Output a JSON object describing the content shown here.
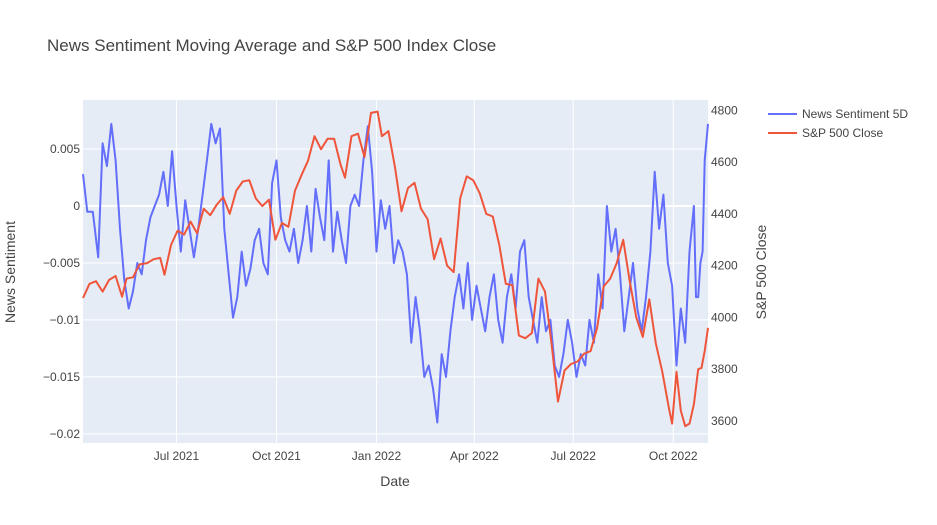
{
  "chart_data": {
    "type": "line",
    "title": "News Sentiment Moving Average and S&P 500 Index Close",
    "xlabel": "Date",
    "ylabel": "News Sentiment",
    "y2label": "S&P 500 Close",
    "xrange": [
      "2021-04-06",
      "2022-11-02"
    ],
    "ylim": [
      -0.0208,
      0.0093
    ],
    "y2lim": [
      3515,
      4840
    ],
    "x_ticks": [
      {
        "date": "2021-07-01",
        "label": "Jul 2021"
      },
      {
        "date": "2021-10-01",
        "label": "Oct 2021"
      },
      {
        "date": "2022-01-01",
        "label": "Jan 2022"
      },
      {
        "date": "2022-04-01",
        "label": "Apr 2022"
      },
      {
        "date": "2022-07-01",
        "label": "Jul 2022"
      },
      {
        "date": "2022-10-01",
        "label": "Oct 2022"
      }
    ],
    "y_ticks": [
      {
        "value": 0.005,
        "label": "0.005"
      },
      {
        "value": 0,
        "label": "0"
      },
      {
        "value": -0.005,
        "label": "−0.005"
      },
      {
        "value": -0.01,
        "label": "−0.01"
      },
      {
        "value": -0.015,
        "label": "−0.015"
      },
      {
        "value": -0.02,
        "label": "−0.02"
      }
    ],
    "y2_ticks": [
      {
        "value": 4800,
        "label": "4800"
      },
      {
        "value": 4600,
        "label": "4600"
      },
      {
        "value": 4400,
        "label": "4400"
      },
      {
        "value": 4200,
        "label": "4200"
      },
      {
        "value": 4000,
        "label": "4000"
      },
      {
        "value": 3800,
        "label": "3800"
      },
      {
        "value": 3600,
        "label": "3600"
      }
    ],
    "legend_position": "top-right outside",
    "grid": true,
    "series": [
      {
        "name": "News Sentiment 5D",
        "axis": "left",
        "color": "#636efa",
        "points": [
          [
            "2021-04-06",
            0.0028
          ],
          [
            "2021-04-10",
            -0.0005
          ],
          [
            "2021-04-15",
            -0.0005
          ],
          [
            "2021-04-20",
            -0.0045
          ],
          [
            "2021-04-24",
            0.0055
          ],
          [
            "2021-04-28",
            0.0035
          ],
          [
            "2021-05-02",
            0.0072
          ],
          [
            "2021-05-06",
            0.004
          ],
          [
            "2021-05-10",
            -0.002
          ],
          [
            "2021-05-14",
            -0.0065
          ],
          [
            "2021-05-18",
            -0.009
          ],
          [
            "2021-05-22",
            -0.0075
          ],
          [
            "2021-05-26",
            -0.005
          ],
          [
            "2021-05-30",
            -0.006
          ],
          [
            "2021-06-03",
            -0.003
          ],
          [
            "2021-06-07",
            -0.001
          ],
          [
            "2021-06-11",
            0.0
          ],
          [
            "2021-06-15",
            0.001
          ],
          [
            "2021-06-19",
            0.003
          ],
          [
            "2021-06-23",
            0.0
          ],
          [
            "2021-06-27",
            0.0048
          ],
          [
            "2021-07-01",
            0.0
          ],
          [
            "2021-07-05",
            -0.004
          ],
          [
            "2021-07-09",
            0.0005
          ],
          [
            "2021-07-13",
            -0.002
          ],
          [
            "2021-07-17",
            -0.0045
          ],
          [
            "2021-07-21",
            -0.002
          ],
          [
            "2021-07-25",
            0.001
          ],
          [
            "2021-07-29",
            0.004
          ],
          [
            "2021-08-02",
            0.0072
          ],
          [
            "2021-08-06",
            0.0055
          ],
          [
            "2021-08-10",
            0.0068
          ],
          [
            "2021-08-14",
            -0.002
          ],
          [
            "2021-08-18",
            -0.006
          ],
          [
            "2021-08-22",
            -0.0098
          ],
          [
            "2021-08-26",
            -0.008
          ],
          [
            "2021-08-30",
            -0.004
          ],
          [
            "2021-09-03",
            -0.007
          ],
          [
            "2021-09-07",
            -0.0055
          ],
          [
            "2021-09-11",
            -0.003
          ],
          [
            "2021-09-15",
            -0.002
          ],
          [
            "2021-09-19",
            -0.005
          ],
          [
            "2021-09-23",
            -0.006
          ],
          [
            "2021-09-27",
            0.002
          ],
          [
            "2021-10-01",
            0.004
          ],
          [
            "2021-10-05",
            -0.001
          ],
          [
            "2021-10-09",
            -0.003
          ],
          [
            "2021-10-13",
            -0.004
          ],
          [
            "2021-10-17",
            -0.002
          ],
          [
            "2021-10-21",
            -0.005
          ],
          [
            "2021-10-25",
            -0.003
          ],
          [
            "2021-10-29",
            0.0
          ],
          [
            "2021-11-02",
            -0.004
          ],
          [
            "2021-11-06",
            0.0015
          ],
          [
            "2021-11-10",
            -0.001
          ],
          [
            "2021-11-14",
            -0.003
          ],
          [
            "2021-11-18",
            0.004
          ],
          [
            "2021-11-22",
            -0.004
          ],
          [
            "2021-11-26",
            -0.0005
          ],
          [
            "2021-11-30",
            -0.003
          ],
          [
            "2021-12-04",
            -0.005
          ],
          [
            "2021-12-08",
            0.0
          ],
          [
            "2021-12-12",
            0.001
          ],
          [
            "2021-12-16",
            0.0
          ],
          [
            "2021-12-20",
            0.004
          ],
          [
            "2021-12-24",
            0.007
          ],
          [
            "2021-12-28",
            0.003
          ],
          [
            "2022-01-01",
            -0.004
          ],
          [
            "2022-01-05",
            0.0005
          ],
          [
            "2022-01-09",
            -0.002
          ],
          [
            "2022-01-13",
            0.0
          ],
          [
            "2022-01-17",
            -0.005
          ],
          [
            "2022-01-21",
            -0.003
          ],
          [
            "2022-01-25",
            -0.004
          ],
          [
            "2022-01-29",
            -0.006
          ],
          [
            "2022-02-02",
            -0.012
          ],
          [
            "2022-02-06",
            -0.008
          ],
          [
            "2022-02-10",
            -0.011
          ],
          [
            "2022-02-14",
            -0.015
          ],
          [
            "2022-02-18",
            -0.014
          ],
          [
            "2022-02-22",
            -0.016
          ],
          [
            "2022-02-26",
            -0.019
          ],
          [
            "2022-03-02",
            -0.013
          ],
          [
            "2022-03-06",
            -0.015
          ],
          [
            "2022-03-10",
            -0.011
          ],
          [
            "2022-03-14",
            -0.008
          ],
          [
            "2022-03-18",
            -0.006
          ],
          [
            "2022-03-22",
            -0.009
          ],
          [
            "2022-03-26",
            -0.005
          ],
          [
            "2022-03-30",
            -0.01
          ],
          [
            "2022-04-03",
            -0.007
          ],
          [
            "2022-04-07",
            -0.009
          ],
          [
            "2022-04-11",
            -0.011
          ],
          [
            "2022-04-15",
            -0.008
          ],
          [
            "2022-04-19",
            -0.006
          ],
          [
            "2022-04-23",
            -0.01
          ],
          [
            "2022-04-27",
            -0.012
          ],
          [
            "2022-05-01",
            -0.008
          ],
          [
            "2022-05-05",
            -0.006
          ],
          [
            "2022-05-09",
            -0.009
          ],
          [
            "2022-05-13",
            -0.004
          ],
          [
            "2022-05-17",
            -0.003
          ],
          [
            "2022-05-21",
            -0.008
          ],
          [
            "2022-05-25",
            -0.01
          ],
          [
            "2022-05-29",
            -0.012
          ],
          [
            "2022-06-02",
            -0.008
          ],
          [
            "2022-06-06",
            -0.011
          ],
          [
            "2022-06-10",
            -0.01
          ],
          [
            "2022-06-14",
            -0.014
          ],
          [
            "2022-06-18",
            -0.015
          ],
          [
            "2022-06-22",
            -0.013
          ],
          [
            "2022-06-26",
            -0.01
          ],
          [
            "2022-06-30",
            -0.012
          ],
          [
            "2022-07-04",
            -0.015
          ],
          [
            "2022-07-08",
            -0.013
          ],
          [
            "2022-07-12",
            -0.014
          ],
          [
            "2022-07-16",
            -0.01
          ],
          [
            "2022-07-20",
            -0.012
          ],
          [
            "2022-07-24",
            -0.006
          ],
          [
            "2022-07-28",
            -0.009
          ],
          [
            "2022-08-01",
            0.0
          ],
          [
            "2022-08-05",
            -0.004
          ],
          [
            "2022-08-09",
            -0.002
          ],
          [
            "2022-08-13",
            -0.006
          ],
          [
            "2022-08-17",
            -0.011
          ],
          [
            "2022-08-21",
            -0.008
          ],
          [
            "2022-08-25",
            -0.005
          ],
          [
            "2022-08-29",
            -0.009
          ],
          [
            "2022-09-02",
            -0.011
          ],
          [
            "2022-09-06",
            -0.008
          ],
          [
            "2022-09-10",
            -0.004
          ],
          [
            "2022-09-14",
            0.003
          ],
          [
            "2022-09-18",
            -0.002
          ],
          [
            "2022-09-22",
            0.001
          ],
          [
            "2022-09-26",
            -0.005
          ],
          [
            "2022-09-30",
            -0.007
          ],
          [
            "2022-10-04",
            -0.014
          ],
          [
            "2022-10-08",
            -0.009
          ],
          [
            "2022-10-12",
            -0.012
          ],
          [
            "2022-10-16",
            -0.004
          ],
          [
            "2022-10-20",
            0.0
          ],
          [
            "2022-10-22",
            -0.008
          ],
          [
            "2022-10-24",
            -0.008
          ],
          [
            "2022-10-26",
            -0.005
          ],
          [
            "2022-10-28",
            -0.004
          ],
          [
            "2022-10-30",
            0.004
          ],
          [
            "2022-11-02",
            0.0072
          ]
        ]
      },
      {
        "name": "S&P 500 Close",
        "axis": "right",
        "color": "#ef553b",
        "points": [
          [
            "2021-04-06",
            4075
          ],
          [
            "2021-04-12",
            4130
          ],
          [
            "2021-04-18",
            4140
          ],
          [
            "2021-04-24",
            4100
          ],
          [
            "2021-04-30",
            4145
          ],
          [
            "2021-05-06",
            4160
          ],
          [
            "2021-05-12",
            4080
          ],
          [
            "2021-05-16",
            4150
          ],
          [
            "2021-05-22",
            4155
          ],
          [
            "2021-05-28",
            4205
          ],
          [
            "2021-06-04",
            4210
          ],
          [
            "2021-06-10",
            4225
          ],
          [
            "2021-06-16",
            4230
          ],
          [
            "2021-06-20",
            4165
          ],
          [
            "2021-06-26",
            4280
          ],
          [
            "2021-07-02",
            4335
          ],
          [
            "2021-07-08",
            4320
          ],
          [
            "2021-07-14",
            4370
          ],
          [
            "2021-07-20",
            4325
          ],
          [
            "2021-07-26",
            4420
          ],
          [
            "2021-08-01",
            4395
          ],
          [
            "2021-08-07",
            4435
          ],
          [
            "2021-08-13",
            4465
          ],
          [
            "2021-08-19",
            4400
          ],
          [
            "2021-08-25",
            4490
          ],
          [
            "2021-08-31",
            4525
          ],
          [
            "2021-09-06",
            4530
          ],
          [
            "2021-09-12",
            4460
          ],
          [
            "2021-09-18",
            4430
          ],
          [
            "2021-09-24",
            4455
          ],
          [
            "2021-09-30",
            4300
          ],
          [
            "2021-10-06",
            4365
          ],
          [
            "2021-10-12",
            4350
          ],
          [
            "2021-10-18",
            4490
          ],
          [
            "2021-10-24",
            4550
          ],
          [
            "2021-10-30",
            4605
          ],
          [
            "2021-11-05",
            4700
          ],
          [
            "2021-11-11",
            4650
          ],
          [
            "2021-11-17",
            4690
          ],
          [
            "2021-11-23",
            4690
          ],
          [
            "2021-11-29",
            4590
          ],
          [
            "2021-12-03",
            4540
          ],
          [
            "2021-12-09",
            4700
          ],
          [
            "2021-12-15",
            4710
          ],
          [
            "2021-12-21",
            4620
          ],
          [
            "2021-12-27",
            4790
          ],
          [
            "2022-01-02",
            4795
          ],
          [
            "2022-01-06",
            4700
          ],
          [
            "2022-01-12",
            4720
          ],
          [
            "2022-01-18",
            4580
          ],
          [
            "2022-01-24",
            4410
          ],
          [
            "2022-01-30",
            4500
          ],
          [
            "2022-02-05",
            4520
          ],
          [
            "2022-02-11",
            4420
          ],
          [
            "2022-02-17",
            4380
          ],
          [
            "2022-02-23",
            4225
          ],
          [
            "2022-03-01",
            4305
          ],
          [
            "2022-03-07",
            4200
          ],
          [
            "2022-03-13",
            4175
          ],
          [
            "2022-03-19",
            4460
          ],
          [
            "2022-03-25",
            4545
          ],
          [
            "2022-03-31",
            4530
          ],
          [
            "2022-04-06",
            4480
          ],
          [
            "2022-04-12",
            4400
          ],
          [
            "2022-04-18",
            4390
          ],
          [
            "2022-04-24",
            4280
          ],
          [
            "2022-04-30",
            4130
          ],
          [
            "2022-05-06",
            4125
          ],
          [
            "2022-05-12",
            3930
          ],
          [
            "2022-05-18",
            3920
          ],
          [
            "2022-05-24",
            3940
          ],
          [
            "2022-05-30",
            4150
          ],
          [
            "2022-06-05",
            4100
          ],
          [
            "2022-06-11",
            3900
          ],
          [
            "2022-06-17",
            3675
          ],
          [
            "2022-06-23",
            3795
          ],
          [
            "2022-06-29",
            3820
          ],
          [
            "2022-07-05",
            3830
          ],
          [
            "2022-07-11",
            3860
          ],
          [
            "2022-07-17",
            3870
          ],
          [
            "2022-07-23",
            3960
          ],
          [
            "2022-07-29",
            4120
          ],
          [
            "2022-08-04",
            4150
          ],
          [
            "2022-08-10",
            4210
          ],
          [
            "2022-08-16",
            4300
          ],
          [
            "2022-08-22",
            4140
          ],
          [
            "2022-08-28",
            4000
          ],
          [
            "2022-09-03",
            3925
          ],
          [
            "2022-09-09",
            4070
          ],
          [
            "2022-09-15",
            3900
          ],
          [
            "2022-09-21",
            3790
          ],
          [
            "2022-09-27",
            3650
          ],
          [
            "2022-09-30",
            3590
          ],
          [
            "2022-10-04",
            3790
          ],
          [
            "2022-10-08",
            3640
          ],
          [
            "2022-10-12",
            3580
          ],
          [
            "2022-10-16",
            3590
          ],
          [
            "2022-10-20",
            3665
          ],
          [
            "2022-10-24",
            3800
          ],
          [
            "2022-10-27",
            3805
          ],
          [
            "2022-10-30",
            3870
          ],
          [
            "2022-11-02",
            3960
          ]
        ]
      }
    ]
  }
}
